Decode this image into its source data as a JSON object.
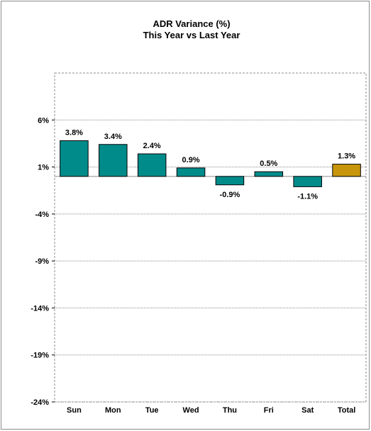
{
  "chart_data": {
    "type": "bar",
    "title": "ADR Variance (%)",
    "subtitle": "This Year vs Last Year",
    "xlabel": "",
    "ylabel": "",
    "categories": [
      "Sun",
      "Mon",
      "Tue",
      "Wed",
      "Thu",
      "Fri",
      "Sat",
      "Total"
    ],
    "values": [
      3.8,
      3.4,
      2.4,
      0.9,
      -0.9,
      0.5,
      -1.1,
      1.3
    ],
    "value_labels": [
      "3.8%",
      "3.4%",
      "2.4%",
      "0.9%",
      "-0.9%",
      "0.5%",
      "-1.1%",
      "1.3%"
    ],
    "y_ticks": [
      6,
      1,
      -4,
      -9,
      -14,
      -19,
      -24
    ],
    "y_tick_labels": [
      "6%",
      "1%",
      "-4%",
      "-9%",
      "-14%",
      "-19%",
      "-24%"
    ],
    "ylim": [
      -24,
      11
    ],
    "grid": true,
    "legend": "none",
    "colors": {
      "bar": "#008b8b",
      "total_bar": "#c8960c",
      "bar_outline": "#000000",
      "grid": "#8c8c8c"
    }
  }
}
